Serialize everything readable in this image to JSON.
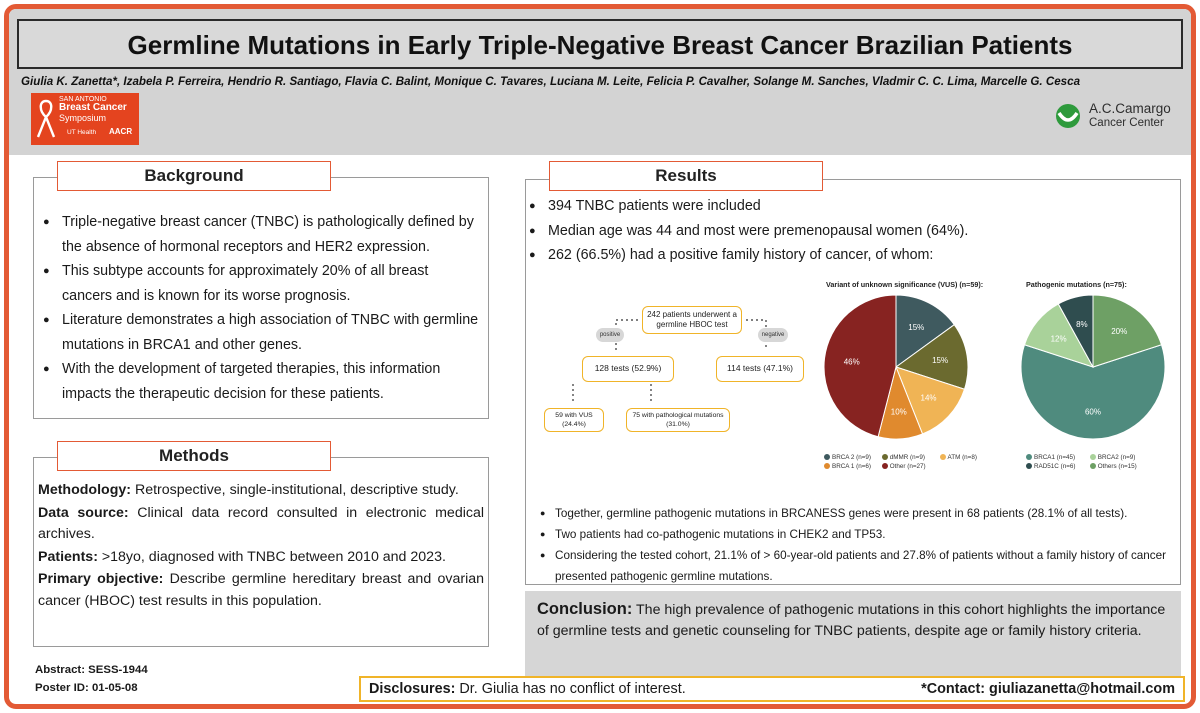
{
  "title": "Germline Mutations in Early Triple-Negative Breast Cancer Brazilian Patients",
  "authors": "Giulia K. Zanetta*, Izabela P. Ferreira, Hendrio R. Santiago, Flavia C. Balint, Monique C. Tavares, Luciana M. Leite, Felicia P. Cavalher, Solange M. Sanches, Vladmir C. C. Lima, Marcelle G. Cesca",
  "logos": {
    "sabcs": {
      "line1": "San Antonio",
      "line2": "Breast Cancer",
      "line3": "Symposium",
      "line4": "UT Health",
      "line5": "AACR"
    },
    "acc": {
      "name1": "A.C.Camargo",
      "name2": "Cancer Center"
    }
  },
  "background": {
    "heading": "Background",
    "bullets": [
      "Triple-negative breast cancer (TNBC) is pathologically defined by the absence of hormonal receptors and HER2 expression.",
      "This subtype accounts for approximately 20% of all breast cancers and is known for its worse prognosis.",
      "Literature demonstrates a high association of TNBC with germline mutations in BRCA1 and other genes.",
      "With the development of targeted therapies, this information impacts the therapeutic decision for these patients."
    ]
  },
  "methods": {
    "heading": "Methods",
    "items": [
      {
        "label": "Methodology:",
        "text": " Retrospective, single-institutional, descriptive study."
      },
      {
        "label": "Data source:",
        "text": " Clinical data record consulted in electronic medical archives."
      },
      {
        "label": "Patients:",
        "text": " >18yo, diagnosed with TNBC between 2010 and 2023."
      },
      {
        "label": "Primary objective:",
        "text": " Describe germline hereditary breast and ovarian cancer (HBOC) test results in this population."
      }
    ]
  },
  "results": {
    "heading": "Results",
    "bullets": [
      "394 TNBC patients were included",
      "Median age was 44 and most were premenopausal women (64%).",
      "262 (66.5%) had a positive family history of cancer, of whom:"
    ],
    "flow": {
      "top": "242 patients underwent a germline HBOC test",
      "positive": "positive",
      "negative": "negative",
      "left": "128 tests (52.9%)",
      "right": "114 tests (47.1%)",
      "vus": "59 with VUS (24.4%)",
      "patho": "75 with pathological mutations (31.0%)"
    },
    "bottom_bullets": [
      "Together, germline pathogenic mutations in BRCANESS genes were present in 68 patients (28.1% of all tests).",
      "Two patients had co-pathogenic mutations in CHEK2 and TP53.",
      "Considering the tested cohort, 21.1% of > 60-year-old patients and 27.8% of patients without a family history of cancer presented pathogenic germline mutations."
    ]
  },
  "chart_data": [
    {
      "type": "pie",
      "title": "Variant of unknown significance (VUS) (n=59):",
      "categories": [
        "BRCA 2 (n=9)",
        "dMMR (n=9)",
        "ATM (n=8)",
        "BRCA 1 (n=6)",
        "Other (n=27)"
      ],
      "values": [
        15,
        15,
        14,
        10,
        46
      ],
      "labels": [
        "15%",
        "15%",
        "14%",
        "10%",
        "46%"
      ],
      "colors": [
        "#3f5a5f",
        "#6b6a2f",
        "#f0b455",
        "#e08a2e",
        "#872321"
      ]
    },
    {
      "type": "pie",
      "title": "Pathogenic mutations (n=75):",
      "categories": [
        "BRCA1 (n=45)",
        "BRCA2 (n=9)",
        "RAD51C (n=6)",
        "Others (n=15)"
      ],
      "values": [
        60,
        12,
        8,
        20
      ],
      "labels": [
        "60%",
        "12%",
        "8%",
        "20%"
      ],
      "colors": [
        "#4f8b7e",
        "#a9d29a",
        "#2f4d4f",
        "#6ea065"
      ]
    }
  ],
  "conclusion": {
    "label": "Conclusion:",
    "text": " The high prevalence of pathogenic mutations in this cohort highlights the importance of germline tests and genetic counseling for TNBC patients, despite age or family history criteria."
  },
  "abstract": "Abstract: SESS-1944",
  "poster_id": "Poster ID: 01-05-08",
  "disclosures": {
    "label": "Disclosures:",
    "text": " Dr. Giulia has no conflict of interest."
  },
  "contact": "*Contact: giuliazanetta@hotmail.com"
}
